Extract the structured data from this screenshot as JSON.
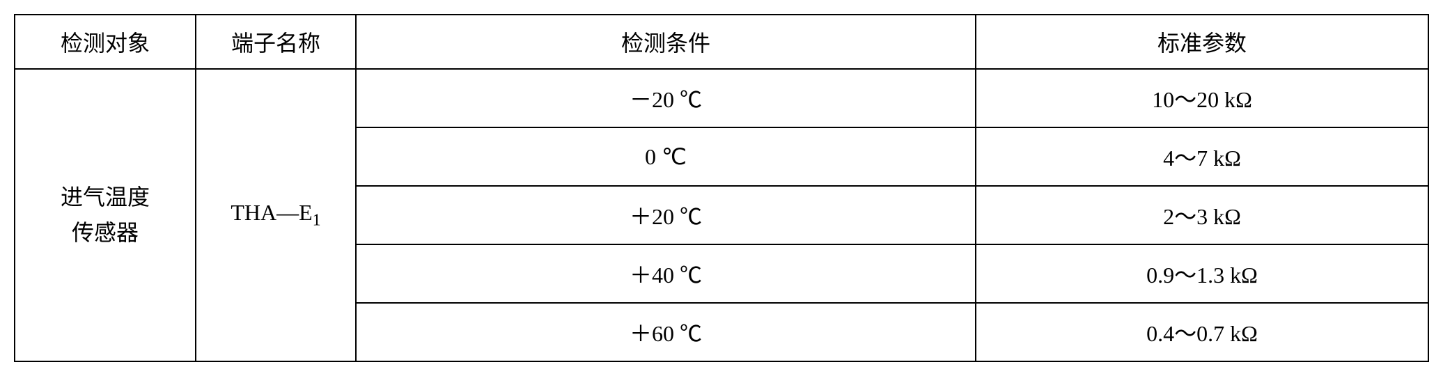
{
  "table": {
    "headers": {
      "col1": "检测对象",
      "col2": "端子名称",
      "col3": "检测条件",
      "col4": "标准参数"
    },
    "body": {
      "subject_line1": "进气温度",
      "subject_line2": "传感器",
      "terminal_prefix": "THA—E",
      "terminal_sub": "1",
      "rows": [
        {
          "condition": "－20 ℃",
          "param": "10～20 kΩ"
        },
        {
          "condition": "0 ℃",
          "param": "4～7 kΩ"
        },
        {
          "condition": "＋20 ℃",
          "param": "2～3 kΩ"
        },
        {
          "condition": "＋40 ℃",
          "param": "0.9～1.3 kΩ"
        },
        {
          "condition": "＋60 ℃",
          "param": "0.4～0.7 kΩ"
        }
      ]
    }
  },
  "style": {
    "border_color": "#000000",
    "background_color": "#ffffff",
    "text_color": "#000000",
    "header_fontsize": 32,
    "cell_fontsize": 32,
    "sub_fontsize": 24
  }
}
